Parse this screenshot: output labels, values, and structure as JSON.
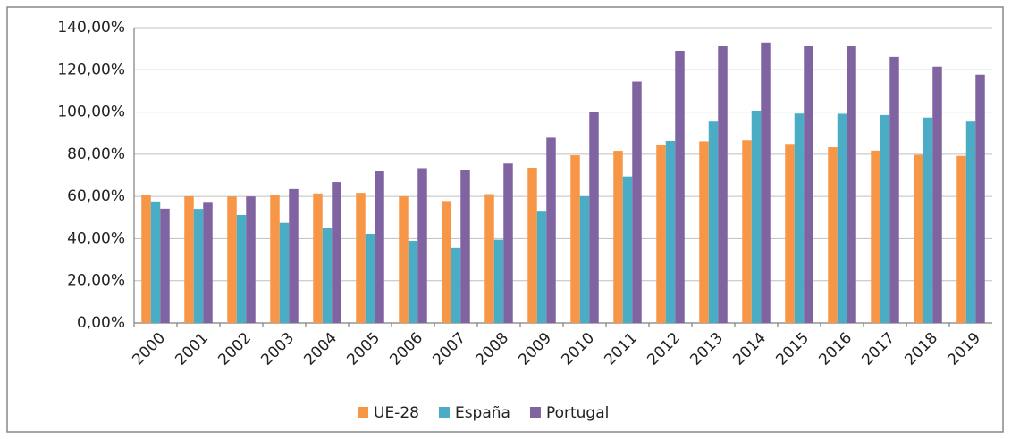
{
  "chart_data": {
    "type": "bar",
    "categories": [
      "2000",
      "2001",
      "2002",
      "2003",
      "2004",
      "2005",
      "2006",
      "2007",
      "2008",
      "2009",
      "2010",
      "2011",
      "2012",
      "2013",
      "2014",
      "2015",
      "2016",
      "2017",
      "2018",
      "2019"
    ],
    "series": [
      {
        "name": "UE-28",
        "color": "#f79646",
        "values": [
          60.5,
          60.1,
          60.0,
          60.7,
          61.4,
          61.7,
          60.1,
          57.8,
          61.1,
          73.6,
          79.5,
          81.6,
          84.4,
          86.1,
          86.6,
          84.9,
          83.3,
          81.7,
          79.7,
          79.2
        ]
      },
      {
        "name": "España",
        "color": "#4bacc6",
        "values": [
          57.6,
          54.1,
          51.2,
          47.5,
          45.1,
          42.3,
          38.9,
          35.6,
          39.5,
          52.8,
          60.1,
          69.5,
          86.3,
          95.5,
          100.7,
          99.3,
          99.2,
          98.6,
          97.4,
          95.5
        ]
      },
      {
        "name": "Portugal",
        "color": "#8064a2",
        "values": [
          54.2,
          57.4,
          60.0,
          63.5,
          66.8,
          71.9,
          73.4,
          72.5,
          75.6,
          87.8,
          100.2,
          114.4,
          129.0,
          131.4,
          132.9,
          131.2,
          131.5,
          126.1,
          121.5,
          117.7
        ]
      }
    ],
    "ylim": [
      0,
      140
    ],
    "yticks": [
      {
        "value": 0,
        "label": "0,00%"
      },
      {
        "value": 20,
        "label": "20,00%"
      },
      {
        "value": 40,
        "label": "40,00%"
      },
      {
        "value": 60,
        "label": "60,00%"
      },
      {
        "value": 80,
        "label": "80,00%"
      },
      {
        "value": 100,
        "label": "100,00%"
      },
      {
        "value": 120,
        "label": "120,00%"
      },
      {
        "value": 140,
        "label": "140,00%"
      }
    ],
    "grid": true
  }
}
